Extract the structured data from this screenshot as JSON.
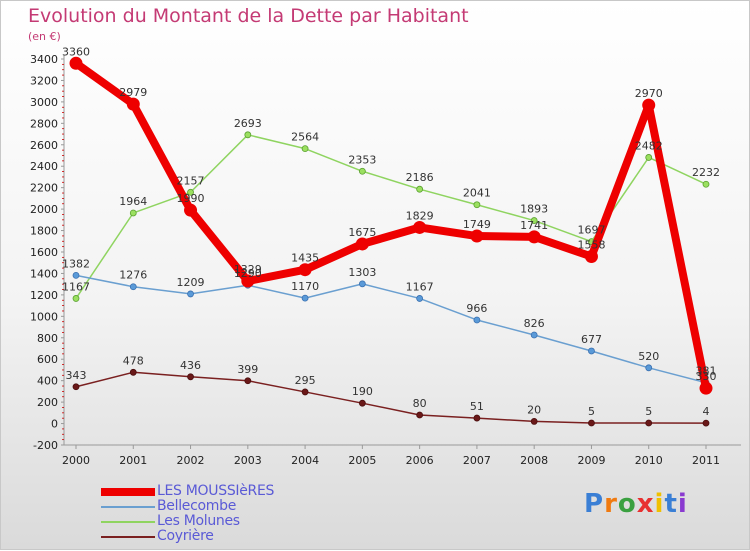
{
  "header": {
    "title": "Evolution du Montant de la Dette par Habitant",
    "unit": "(en €)"
  },
  "chart_data": {
    "type": "line",
    "title": "Evolution du Montant de la Dette par Habitant",
    "ylabel": "(en €)",
    "xlabel": "",
    "x": [
      "2000",
      "2001",
      "2002",
      "2003",
      "2004",
      "2005",
      "2006",
      "2007",
      "2008",
      "2009",
      "2010",
      "2011"
    ],
    "ylim": [
      -200,
      3400
    ],
    "yticks": [
      -200,
      0,
      200,
      400,
      600,
      800,
      1000,
      1200,
      1400,
      1600,
      1800,
      2000,
      2200,
      2400,
      2600,
      2800,
      3000,
      3200,
      3400
    ],
    "grid": false,
    "legend_position": "bottom-left",
    "series": [
      {
        "name": "LES MOUSSIèRES",
        "color": "#ee0000",
        "values": [
          3360,
          2979,
          1990,
          1329,
          1435,
          1675,
          1829,
          1749,
          1741,
          1558,
          2970,
          330
        ]
      },
      {
        "name": "Bellecombe",
        "color": "#6a9fd0",
        "values": [
          1382,
          1276,
          1209,
          1290,
          1170,
          1303,
          1167,
          966,
          826,
          677,
          520,
          381
        ]
      },
      {
        "name": "Les Molunes",
        "color": "#8fd460",
        "values": [
          1167,
          1964,
          2157,
          2693,
          2564,
          2353,
          2186,
          2041,
          1893,
          1697,
          2482,
          2232
        ]
      },
      {
        "name": "Coyrière",
        "color": "#7a2020",
        "values": [
          343,
          478,
          436,
          399,
          295,
          190,
          80,
          51,
          20,
          5,
          5,
          4
        ]
      }
    ]
  },
  "logo": {
    "letters": [
      "P",
      "r",
      "o",
      "x",
      "i",
      "t",
      "i"
    ],
    "colors": [
      "#3a7fd5",
      "#f07a10",
      "#3aa040",
      "#e83030",
      "#f0c000",
      "#3a7fd5",
      "#8a3ad0"
    ]
  }
}
